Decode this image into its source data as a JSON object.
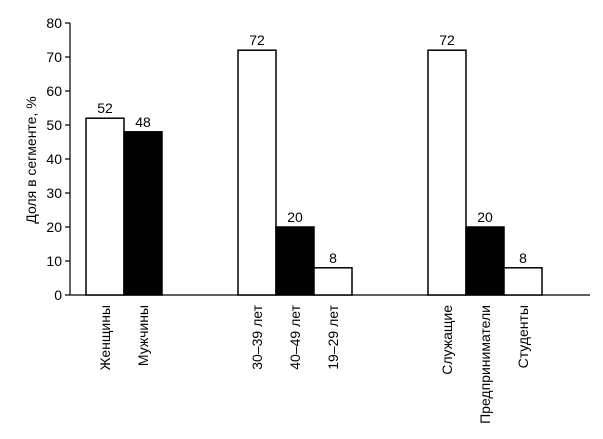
{
  "chart_data": {
    "type": "bar",
    "ylabel": "Доля в сегменте, %",
    "categories": [
      "Женщины",
      "Мужчины",
      null,
      null,
      "30–39 лет",
      "40–49 лет",
      "19–29 лет",
      null,
      null,
      "Служащие",
      "Предприниматели",
      "Студенты"
    ],
    "values": [
      52,
      48,
      null,
      null,
      72,
      20,
      8,
      null,
      null,
      72,
      20,
      8
    ],
    "colors": [
      "#ffffff",
      "#000000",
      null,
      null,
      "#ffffff",
      "#000000",
      "#ffffff",
      null,
      null,
      "#ffffff",
      "#000000",
      "#ffffff"
    ],
    "ylim": [
      0,
      80
    ],
    "yticks": [
      0,
      10,
      20,
      30,
      40,
      50,
      60,
      70,
      80
    ],
    "grid": false
  }
}
